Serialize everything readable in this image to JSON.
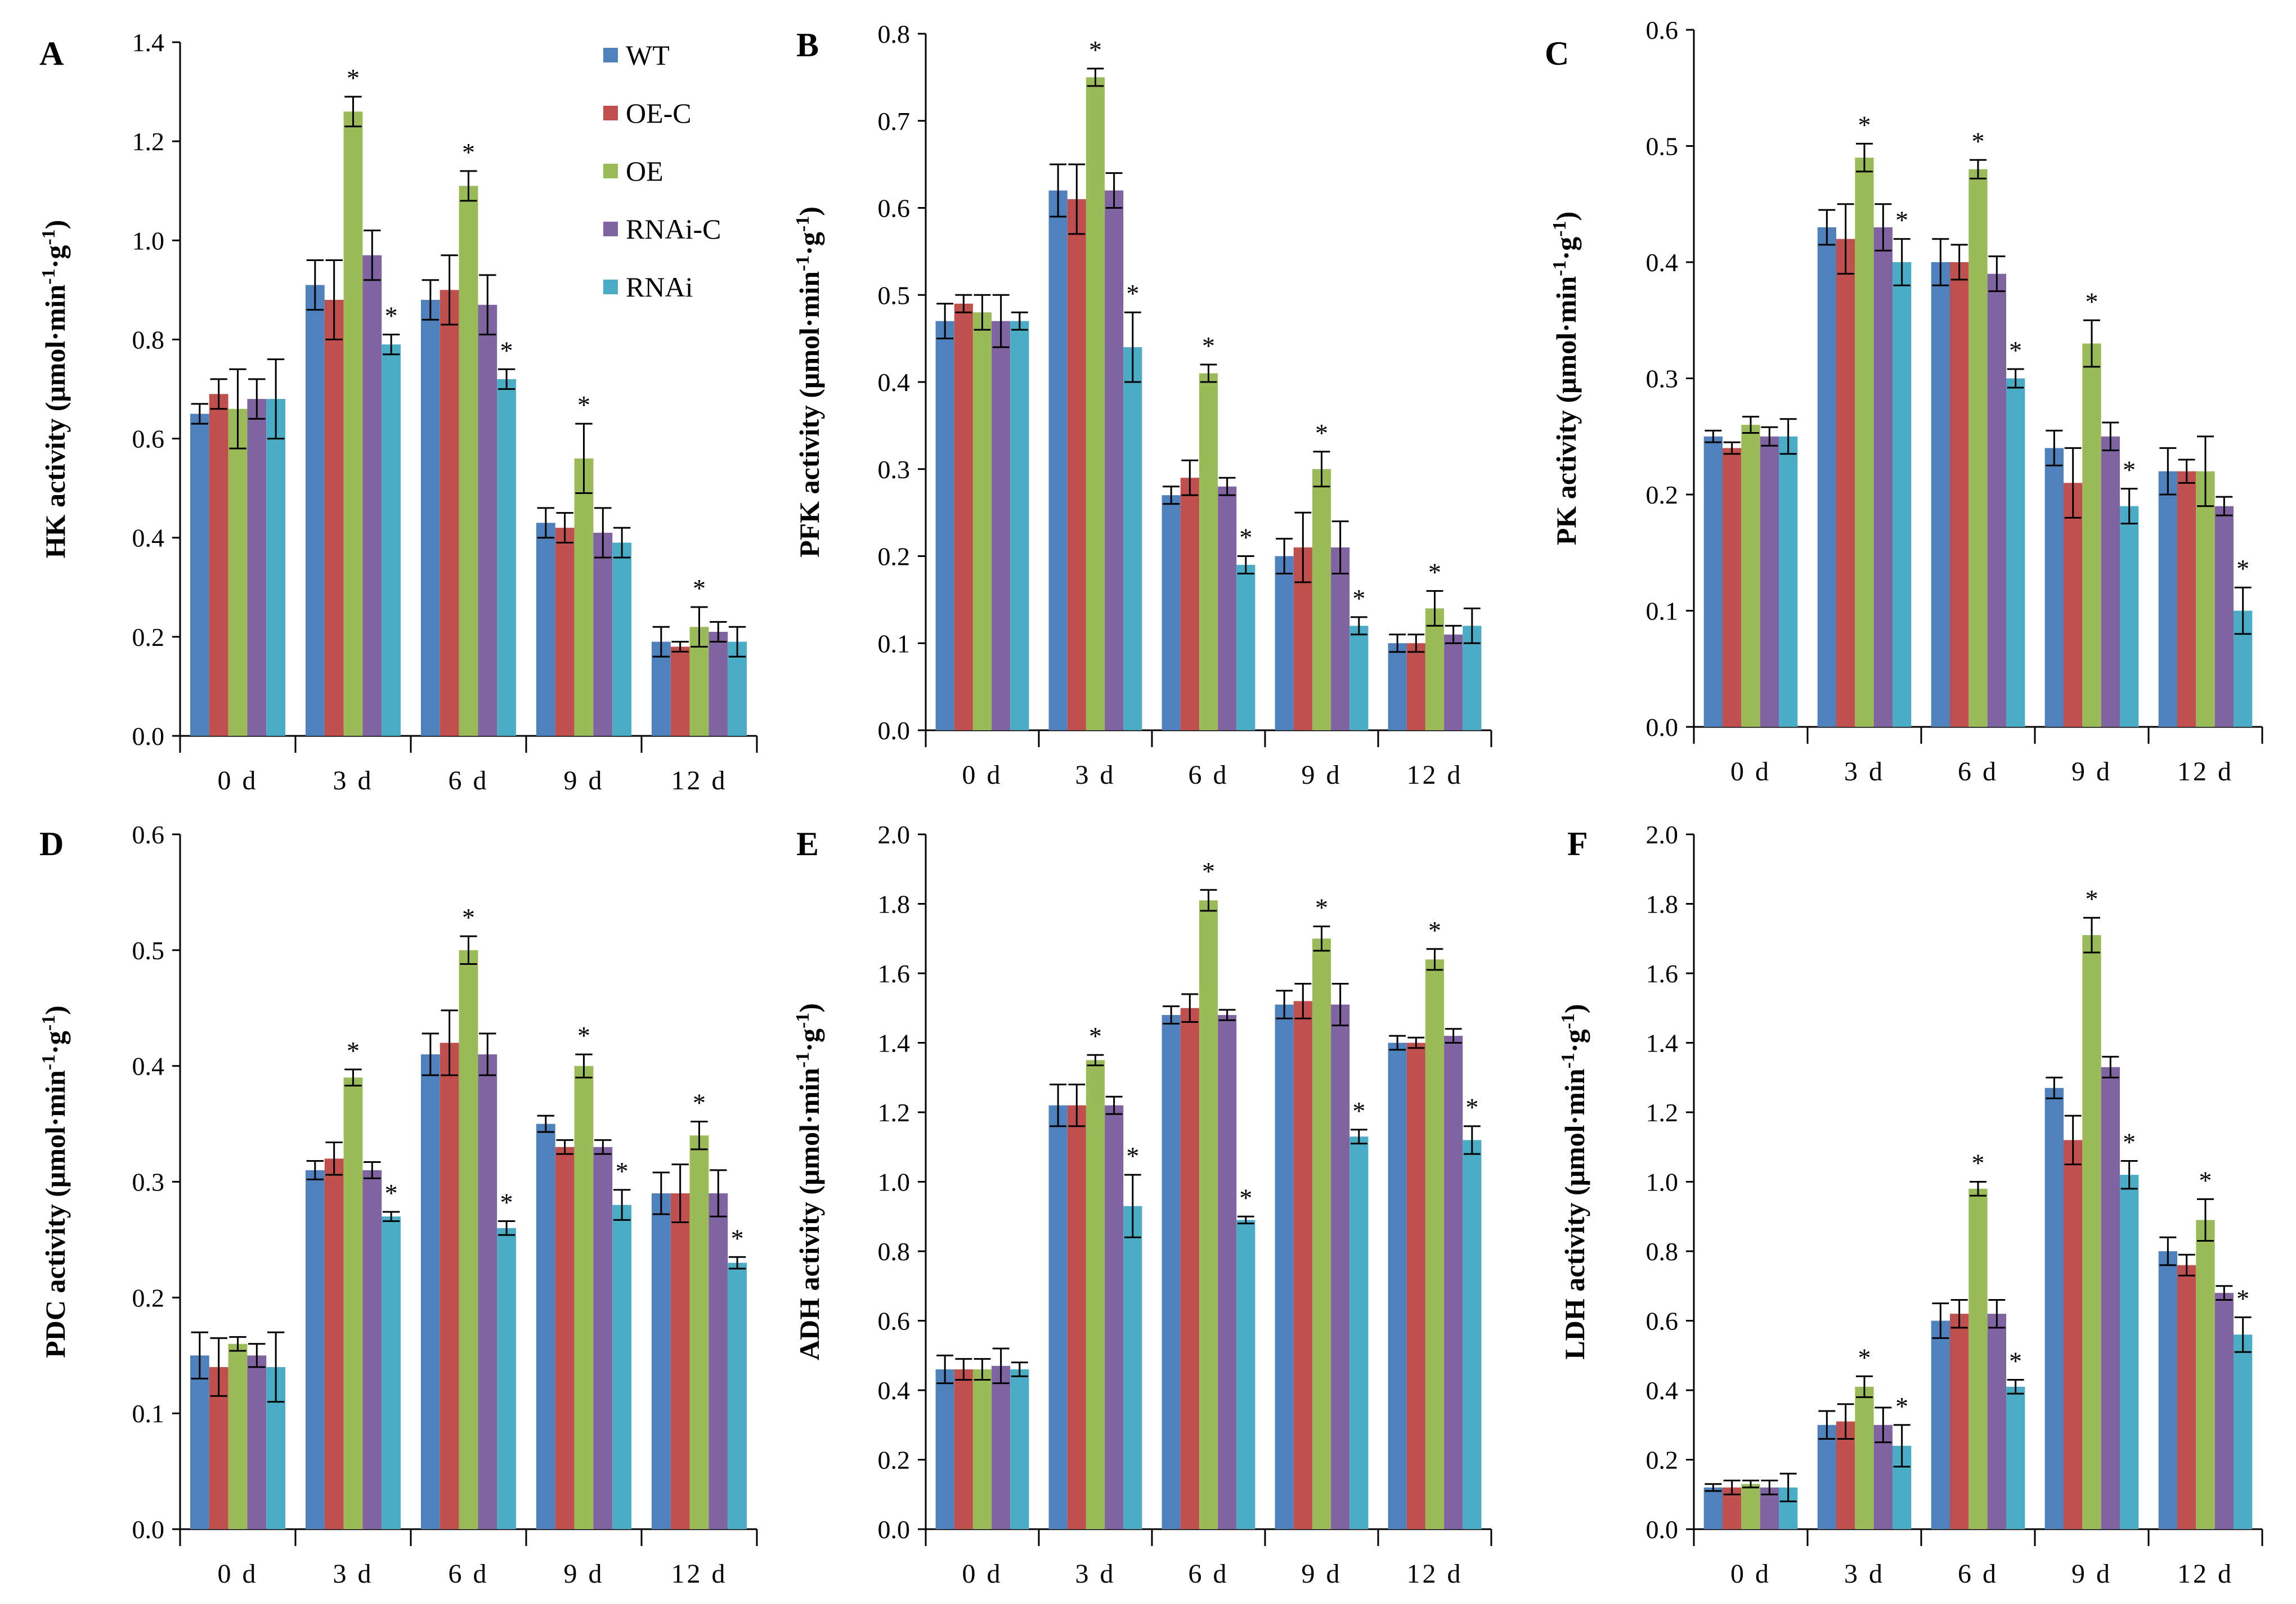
{
  "legend": [
    {
      "name": "WT",
      "color": "#4F81BD"
    },
    {
      "name": "OE-C",
      "color": "#C0504D"
    },
    {
      "name": "OE",
      "color": "#9BBB59"
    },
    {
      "name": "RNAi-C",
      "color": "#8064A2"
    },
    {
      "name": "RNAi",
      "color": "#4BACC6"
    }
  ],
  "chart_data": [
    {
      "panel": "A",
      "type": "bar",
      "ylabel_main": "HK activity (μmol·min",
      "ylabel_sup1": "-1",
      "ylabel_mid": "·g",
      "ylabel_sup2": "-1",
      "ylabel_end": ")",
      "categories": [
        "0 d",
        "3 d",
        "6 d",
        "9 d",
        "12 d"
      ],
      "ylim": [
        0,
        1.4
      ],
      "yticks": [
        "0.0",
        "0.2",
        "0.4",
        "0.6",
        "0.8",
        "1.0",
        "1.2",
        "1.4"
      ],
      "series": [
        {
          "name": "WT",
          "values": [
            0.65,
            0.91,
            0.88,
            0.43,
            0.19
          ],
          "errors": [
            0.02,
            0.05,
            0.04,
            0.03,
            0.03
          ],
          "sig": [
            false,
            false,
            false,
            false,
            false
          ]
        },
        {
          "name": "OE-C",
          "values": [
            0.69,
            0.88,
            0.9,
            0.42,
            0.18
          ],
          "errors": [
            0.03,
            0.08,
            0.07,
            0.03,
            0.01
          ],
          "sig": [
            false,
            false,
            false,
            false,
            false
          ]
        },
        {
          "name": "OE",
          "values": [
            0.66,
            1.26,
            1.11,
            0.56,
            0.22
          ],
          "errors": [
            0.08,
            0.03,
            0.03,
            0.07,
            0.04
          ],
          "sig": [
            false,
            true,
            true,
            true,
            true
          ]
        },
        {
          "name": "RNAi-C",
          "values": [
            0.68,
            0.97,
            0.87,
            0.41,
            0.21
          ],
          "errors": [
            0.04,
            0.05,
            0.06,
            0.05,
            0.02
          ],
          "sig": [
            false,
            false,
            false,
            false,
            false
          ]
        },
        {
          "name": "RNAi",
          "values": [
            0.68,
            0.79,
            0.72,
            0.39,
            0.19
          ],
          "errors": [
            0.08,
            0.02,
            0.02,
            0.03,
            0.03
          ],
          "sig": [
            false,
            true,
            true,
            false,
            false
          ]
        }
      ]
    },
    {
      "panel": "B",
      "type": "bar",
      "ylabel_main": "PFK activity (μmol·min",
      "ylabel_sup1": "-1",
      "ylabel_mid": "·g",
      "ylabel_sup2": "-1",
      "ylabel_end": ")",
      "categories": [
        "0 d",
        "3 d",
        "6 d",
        "9 d",
        "12 d"
      ],
      "ylim": [
        0,
        0.8
      ],
      "yticks": [
        "0.0",
        "0.1",
        "0.2",
        "0.3",
        "0.4",
        "0.5",
        "0.6",
        "0.7",
        "0.8"
      ],
      "series": [
        {
          "name": "WT",
          "values": [
            0.47,
            0.62,
            0.27,
            0.2,
            0.1
          ],
          "errors": [
            0.02,
            0.03,
            0.01,
            0.02,
            0.01
          ],
          "sig": [
            false,
            false,
            false,
            false,
            false
          ]
        },
        {
          "name": "OE-C",
          "values": [
            0.49,
            0.61,
            0.29,
            0.21,
            0.1
          ],
          "errors": [
            0.01,
            0.04,
            0.02,
            0.04,
            0.01
          ],
          "sig": [
            false,
            false,
            false,
            false,
            false
          ]
        },
        {
          "name": "OE",
          "values": [
            0.48,
            0.75,
            0.41,
            0.3,
            0.14
          ],
          "errors": [
            0.02,
            0.01,
            0.01,
            0.02,
            0.02
          ],
          "sig": [
            false,
            true,
            true,
            true,
            true
          ]
        },
        {
          "name": "RNAi-C",
          "values": [
            0.47,
            0.62,
            0.28,
            0.21,
            0.11
          ],
          "errors": [
            0.03,
            0.02,
            0.01,
            0.03,
            0.01
          ],
          "sig": [
            false,
            false,
            false,
            false,
            false
          ]
        },
        {
          "name": "RNAi",
          "values": [
            0.47,
            0.44,
            0.19,
            0.12,
            0.12
          ],
          "errors": [
            0.01,
            0.04,
            0.01,
            0.01,
            0.02
          ],
          "sig": [
            false,
            true,
            true,
            true,
            false
          ]
        }
      ]
    },
    {
      "panel": "C",
      "type": "bar",
      "ylabel_main": "PK activity (μmol·min",
      "ylabel_sup1": "-1",
      "ylabel_mid": "·g",
      "ylabel_sup2": "-1",
      "ylabel_end": ")",
      "categories": [
        "0 d",
        "3 d",
        "6 d",
        "9 d",
        "12 d"
      ],
      "ylim": [
        0,
        0.6
      ],
      "yticks": [
        "0.0",
        "0.1",
        "0.2",
        "0.3",
        "0.4",
        "0.5",
        "0.6"
      ],
      "series": [
        {
          "name": "WT",
          "values": [
            0.25,
            0.43,
            0.4,
            0.24,
            0.22
          ],
          "errors": [
            0.005,
            0.015,
            0.02,
            0.015,
            0.02
          ],
          "sig": [
            false,
            false,
            false,
            false,
            false
          ]
        },
        {
          "name": "OE-C",
          "values": [
            0.24,
            0.42,
            0.4,
            0.21,
            0.22
          ],
          "errors": [
            0.005,
            0.03,
            0.015,
            0.03,
            0.01
          ],
          "sig": [
            false,
            false,
            false,
            false,
            false
          ]
        },
        {
          "name": "OE",
          "values": [
            0.26,
            0.49,
            0.48,
            0.33,
            0.22
          ],
          "errors": [
            0.007,
            0.012,
            0.008,
            0.02,
            0.03
          ],
          "sig": [
            false,
            true,
            true,
            true,
            false
          ]
        },
        {
          "name": "RNAi-C",
          "values": [
            0.25,
            0.43,
            0.39,
            0.25,
            0.19
          ],
          "errors": [
            0.008,
            0.02,
            0.015,
            0.012,
            0.008
          ],
          "sig": [
            false,
            false,
            false,
            false,
            false
          ]
        },
        {
          "name": "RNAi",
          "values": [
            0.25,
            0.4,
            0.3,
            0.19,
            0.1
          ],
          "errors": [
            0.015,
            0.02,
            0.008,
            0.015,
            0.02
          ],
          "sig": [
            false,
            true,
            true,
            true,
            true
          ]
        }
      ]
    },
    {
      "panel": "D",
      "type": "bar",
      "ylabel_main": "PDC activity (μmol·min",
      "ylabel_sup1": "-1",
      "ylabel_mid": "·g",
      "ylabel_sup2": "-1",
      "ylabel_end": ")",
      "categories": [
        "0 d",
        "3 d",
        "6 d",
        "9 d",
        "12 d"
      ],
      "ylim": [
        0,
        0.6
      ],
      "yticks": [
        "0.0",
        "0.1",
        "0.2",
        "0.3",
        "0.4",
        "0.5",
        "0.6"
      ],
      "series": [
        {
          "name": "WT",
          "values": [
            0.15,
            0.31,
            0.41,
            0.35,
            0.29
          ],
          "errors": [
            0.02,
            0.008,
            0.018,
            0.007,
            0.018
          ],
          "sig": [
            false,
            false,
            false,
            false,
            false
          ]
        },
        {
          "name": "OE-C",
          "values": [
            0.14,
            0.32,
            0.42,
            0.33,
            0.29
          ],
          "errors": [
            0.025,
            0.014,
            0.028,
            0.006,
            0.025
          ],
          "sig": [
            false,
            false,
            false,
            false,
            false
          ]
        },
        {
          "name": "OE",
          "values": [
            0.16,
            0.39,
            0.5,
            0.4,
            0.34
          ],
          "errors": [
            0.006,
            0.007,
            0.012,
            0.01,
            0.012
          ],
          "sig": [
            false,
            true,
            true,
            true,
            true
          ]
        },
        {
          "name": "RNAi-C",
          "values": [
            0.15,
            0.31,
            0.41,
            0.33,
            0.29
          ],
          "errors": [
            0.01,
            0.007,
            0.018,
            0.006,
            0.02
          ],
          "sig": [
            false,
            false,
            false,
            false,
            false
          ]
        },
        {
          "name": "RNAi",
          "values": [
            0.14,
            0.27,
            0.26,
            0.28,
            0.23
          ],
          "errors": [
            0.03,
            0.004,
            0.006,
            0.013,
            0.005
          ],
          "sig": [
            false,
            true,
            true,
            true,
            true
          ]
        }
      ]
    },
    {
      "panel": "E",
      "type": "bar",
      "ylabel_main": "ADH activity (μmol·min",
      "ylabel_sup1": "-1",
      "ylabel_mid": "·g",
      "ylabel_sup2": "-1",
      "ylabel_end": ")",
      "categories": [
        "0 d",
        "3 d",
        "6 d",
        "9 d",
        "12 d"
      ],
      "ylim": [
        0,
        2.0
      ],
      "yticks": [
        "0.0",
        "0.2",
        "0.4",
        "0.6",
        "0.8",
        "1.0",
        "1.2",
        "1.4",
        "1.6",
        "1.8",
        "2.0"
      ],
      "series": [
        {
          "name": "WT",
          "values": [
            0.46,
            1.22,
            1.48,
            1.51,
            1.4
          ],
          "errors": [
            0.04,
            0.06,
            0.025,
            0.04,
            0.02
          ],
          "sig": [
            false,
            false,
            false,
            false,
            false
          ]
        },
        {
          "name": "OE-C",
          "values": [
            0.46,
            1.22,
            1.5,
            1.52,
            1.4
          ],
          "errors": [
            0.03,
            0.06,
            0.04,
            0.05,
            0.015
          ],
          "sig": [
            false,
            false,
            false,
            false,
            false
          ]
        },
        {
          "name": "OE",
          "values": [
            0.46,
            1.35,
            1.81,
            1.7,
            1.64
          ],
          "errors": [
            0.03,
            0.015,
            0.03,
            0.035,
            0.03
          ],
          "sig": [
            false,
            true,
            true,
            true,
            true
          ]
        },
        {
          "name": "RNAi-C",
          "values": [
            0.47,
            1.22,
            1.48,
            1.51,
            1.42
          ],
          "errors": [
            0.05,
            0.025,
            0.015,
            0.06,
            0.02
          ],
          "sig": [
            false,
            false,
            false,
            false,
            false
          ]
        },
        {
          "name": "RNAi",
          "values": [
            0.46,
            0.93,
            0.89,
            1.13,
            1.12
          ],
          "errors": [
            0.02,
            0.09,
            0.01,
            0.02,
            0.04
          ],
          "sig": [
            false,
            true,
            true,
            true,
            true
          ]
        }
      ]
    },
    {
      "panel": "F",
      "type": "bar",
      "ylabel_main": "LDH activity (μmol·min",
      "ylabel_sup1": "-1",
      "ylabel_mid": "·g",
      "ylabel_sup2": "-1",
      "ylabel_end": ")",
      "categories": [
        "0 d",
        "3 d",
        "6 d",
        "9 d",
        "12 d"
      ],
      "ylim": [
        0,
        2.0
      ],
      "yticks": [
        "0.0",
        "0.2",
        "0.4",
        "0.6",
        "0.8",
        "1.0",
        "1.2",
        "1.4",
        "1.6",
        "1.8",
        "2.0"
      ],
      "series": [
        {
          "name": "WT",
          "values": [
            0.12,
            0.3,
            0.6,
            1.27,
            0.8
          ],
          "errors": [
            0.01,
            0.04,
            0.05,
            0.03,
            0.04
          ],
          "sig": [
            false,
            false,
            false,
            false,
            false
          ]
        },
        {
          "name": "OE-C",
          "values": [
            0.12,
            0.31,
            0.62,
            1.12,
            0.76
          ],
          "errors": [
            0.02,
            0.05,
            0.04,
            0.07,
            0.03
          ],
          "sig": [
            false,
            false,
            false,
            false,
            false
          ]
        },
        {
          "name": "OE",
          "values": [
            0.13,
            0.41,
            0.98,
            1.71,
            0.89
          ],
          "errors": [
            0.01,
            0.03,
            0.02,
            0.05,
            0.06
          ],
          "sig": [
            false,
            true,
            true,
            true,
            true
          ]
        },
        {
          "name": "RNAi-C",
          "values": [
            0.12,
            0.3,
            0.62,
            1.33,
            0.68
          ],
          "errors": [
            0.02,
            0.05,
            0.04,
            0.03,
            0.02
          ],
          "sig": [
            false,
            false,
            false,
            false,
            false
          ]
        },
        {
          "name": "RNAi",
          "values": [
            0.12,
            0.24,
            0.41,
            1.02,
            0.56
          ],
          "errors": [
            0.04,
            0.06,
            0.02,
            0.04,
            0.05
          ],
          "sig": [
            false,
            true,
            true,
            true,
            true
          ]
        }
      ]
    }
  ]
}
